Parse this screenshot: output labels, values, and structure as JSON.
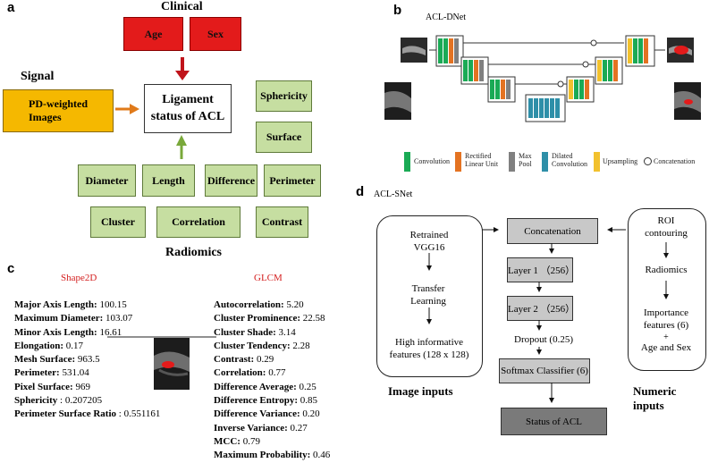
{
  "panel_a": {
    "letter": "a",
    "clinical_label": "Clinical",
    "clinical_items": [
      "Age",
      "Sex"
    ],
    "signal_label": "Signal",
    "signal_box": "PD-weighted Images",
    "center_box": "Ligament status of ACL",
    "radiomics_label": "Radiomics",
    "radiomics_items": [
      "Sphericity",
      "Surface",
      "Diameter",
      "Length",
      "Difference",
      "Perimeter",
      "Cluster",
      "Correlation",
      "Contrast"
    ],
    "colors": {
      "clinical": "#e31b1b",
      "signal": "#f5b800",
      "radiomics": "#c6dea1",
      "arrow_red": "#c0141b",
      "arrow_orange": "#e07a1a",
      "arrow_green": "#79a83a"
    }
  },
  "panel_b": {
    "letter": "b",
    "title": "ACL-DNet",
    "legend": [
      {
        "label": "Convolution",
        "color": "#1aaa55"
      },
      {
        "label": "Rectified Linear Unit",
        "color": "#e47322"
      },
      {
        "label": "Max Pool",
        "color": "#808080"
      },
      {
        "label": "Dilated Convolution",
        "color": "#2e8fa8"
      },
      {
        "label": "Upsampling",
        "color": "#f2c12e"
      },
      {
        "label": "Concatenation",
        "color": "#ffffff"
      }
    ]
  },
  "panel_c": {
    "letter": "c",
    "shape_header": "Shape2D",
    "glcm_header": "GLCM",
    "shape_features": [
      {
        "name": "Major Axis Length:",
        "value": "100.15"
      },
      {
        "name": "Maximum Diameter:",
        "value": "103.07"
      },
      {
        "name": "Minor Axis Length:",
        "value": "16.61"
      },
      {
        "name": "Elongation:",
        "value": "0.17"
      },
      {
        "name": "Mesh Surface:",
        "value": "963.5"
      },
      {
        "name": "Perimeter:",
        "value": "531.04"
      },
      {
        "name": "Pixel Surface:",
        "value": "969"
      },
      {
        "name": "Sphericity",
        "value": ": 0.207205"
      },
      {
        "name": "Perimeter Surface Ratio",
        "value": ": 0.551161"
      }
    ],
    "glcm_features": [
      {
        "name": "Autocorrelation:",
        "value": "5.20"
      },
      {
        "name": "Cluster Prominence:",
        "value": "22.58"
      },
      {
        "name": "Cluster Shade:",
        "value": "3.14"
      },
      {
        "name": "Cluster Tendency:",
        "value": "2.28"
      },
      {
        "name": "Contrast:",
        "value": "0.29"
      },
      {
        "name": "Correlation:",
        "value": "0.77"
      },
      {
        "name": "Difference Average:",
        "value": "0.25"
      },
      {
        "name": "Difference Entropy:",
        "value": "0.85"
      },
      {
        "name": "Difference Variance:",
        "value": "0.20"
      },
      {
        "name": "Inverse Variance:",
        "value": "0.27"
      },
      {
        "name": "MCC:",
        "value": "0.79"
      },
      {
        "name": "Maximum Probability:",
        "value": "0.46"
      }
    ]
  },
  "panel_d": {
    "letter": "d",
    "title": "ACL-SNet",
    "image_branch": [
      "Retrained VGG16",
      "Transfer Learning",
      "High informative features (128 x 128)"
    ],
    "image_label": "Image inputs",
    "numeric_branch": [
      "ROI contouring",
      "Radiomics",
      "Importance features (6)",
      "+",
      "Age and Sex"
    ],
    "numeric_label": "Numeric inputs",
    "pipeline": [
      "Concatenation",
      "Layer 1 （256）",
      "Layer 2 （256）",
      "Dropout (0.25)",
      "Softmax Classifier (6)",
      "Status of ACL"
    ]
  }
}
